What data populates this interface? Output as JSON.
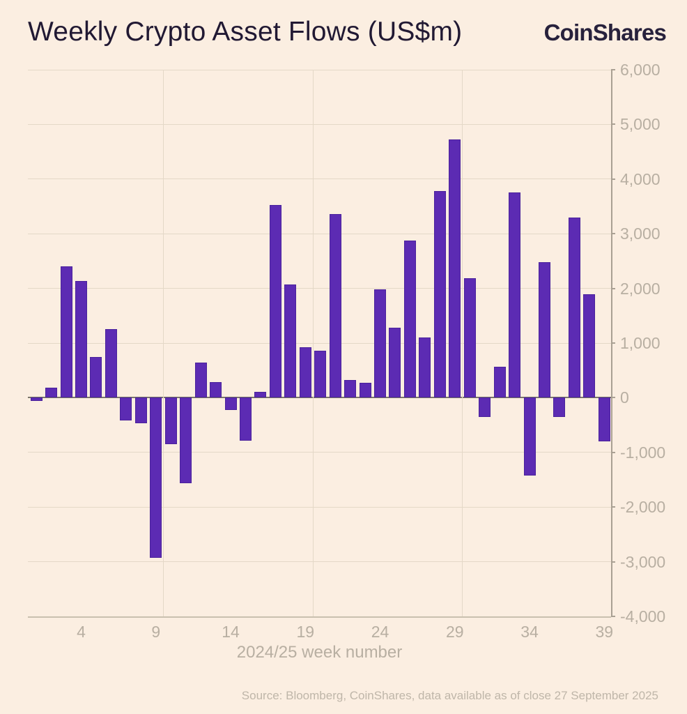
{
  "header": {
    "title": "Weekly Crypto Asset Flows (US$m)",
    "logo_text": "CoinShares"
  },
  "footer": {
    "source": "Source: Bloomberg, CoinShares, data available as of close 27 September 2025"
  },
  "colors": {
    "background": "#fbeee1",
    "bar": "#5c2bb3",
    "bar_edge": "#4a229c",
    "gridline": "#e4d8c7",
    "zero_line": "#7b756a",
    "axis_line": "#a9a093",
    "tick_label": "#b8afa2",
    "title_text": "#211933"
  },
  "chart_data": {
    "type": "bar",
    "title": "Weekly Crypto Asset Flows (US$m)",
    "xlabel": "2024/25 week number",
    "ylabel": "",
    "ylim": [
      -4000,
      6000
    ],
    "grid": true,
    "legend_position": "none",
    "y_tick_values": [
      6000,
      5000,
      4000,
      3000,
      2000,
      1000,
      0,
      -1000,
      -2000,
      -3000,
      -4000
    ],
    "y_tick_labels": [
      "6,000",
      "5,000",
      "4,000",
      "3,000",
      "2,000",
      "1,000",
      "0",
      "-1,000",
      "-2,000",
      "-3,000",
      "-4,000"
    ],
    "x_tick_values": [
      4,
      9,
      14,
      19,
      24,
      29,
      34,
      39
    ],
    "x_tick_labels": [
      "4",
      "9",
      "14",
      "19",
      "24",
      "29",
      "34",
      "39"
    ],
    "vertical_gridline_weeks": [
      9.5,
      19.5,
      29.5
    ],
    "categories": [
      1,
      2,
      3,
      4,
      5,
      6,
      7,
      8,
      9,
      10,
      11,
      12,
      13,
      14,
      15,
      16,
      17,
      18,
      19,
      20,
      21,
      22,
      23,
      24,
      25,
      26,
      27,
      28,
      29,
      30,
      31,
      32,
      33,
      34,
      35,
      36,
      37,
      38,
      39
    ],
    "values": [
      -60,
      180,
      2400,
      2140,
      750,
      1260,
      -410,
      -470,
      -2930,
      -850,
      -1560,
      640,
      280,
      -230,
      -780,
      110,
      3530,
      2070,
      920,
      860,
      3360,
      320,
      270,
      1980,
      1280,
      2880,
      1100,
      3780,
      4720,
      2190,
      -350,
      570,
      3750,
      -1420,
      2480,
      -350,
      3300,
      1890,
      -800
    ]
  }
}
